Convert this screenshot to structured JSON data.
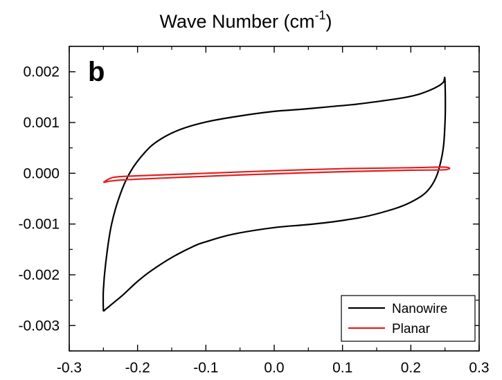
{
  "chart_data": {
    "type": "line",
    "title": "Wave Number (cm",
    "title_superscript": "-1",
    "title_suffix": ")",
    "panel_label": "b",
    "xlabel": "",
    "ylabel": "",
    "xlim": [
      -0.3,
      0.3
    ],
    "ylim": [
      -0.0035,
      0.0025
    ],
    "x_ticks": [
      -0.3,
      -0.2,
      -0.1,
      0.0,
      0.1,
      0.2,
      0.3
    ],
    "x_tick_labels": [
      "-0.3",
      "-0.2",
      "-0.1",
      "0.0",
      "0.1",
      "0.2",
      "0.3"
    ],
    "y_ticks": [
      0.002,
      0.001,
      0.0,
      -0.001,
      -0.002,
      -0.003
    ],
    "y_tick_labels": [
      "0.002",
      "0.001",
      "0.000",
      "-0.001",
      "-0.002",
      "-0.003"
    ],
    "grid": false,
    "legend_position": "bottom-right",
    "series": [
      {
        "name": "Nanowire",
        "color": "#000000",
        "x": [
          -0.25,
          -0.245,
          -0.235,
          -0.22,
          -0.2,
          -0.18,
          -0.15,
          -0.12,
          -0.1,
          -0.06,
          0.0,
          0.05,
          0.1,
          0.15,
          0.2,
          0.23,
          0.245,
          0.25,
          0.25,
          0.248,
          0.243,
          0.235,
          0.225,
          0.21,
          0.19,
          0.16,
          0.12,
          0.08,
          0.04,
          0.0,
          -0.05,
          -0.1,
          -0.14,
          -0.17,
          -0.19,
          -0.21,
          -0.225,
          -0.238,
          -0.246,
          -0.25,
          -0.25
        ],
        "y": [
          -0.00272,
          -0.00266,
          -0.00255,
          -0.00238,
          -0.00213,
          -0.00192,
          -0.00166,
          -0.00145,
          -0.00135,
          -0.0012,
          -0.00107,
          -0.00101,
          -0.00093,
          -0.0008,
          -0.00057,
          -0.00025,
          0.0003,
          0.001,
          0.00183,
          0.0018,
          0.00174,
          0.00168,
          0.00162,
          0.00155,
          0.00149,
          0.00143,
          0.00136,
          0.00131,
          0.00126,
          0.00122,
          0.00113,
          0.00101,
          0.00085,
          0.00064,
          0.0004,
          4e-05,
          -0.0004,
          -0.001,
          -0.0017,
          -0.0023,
          -0.00272
        ]
      },
      {
        "name": "Planar",
        "color": "#e02020",
        "x": [
          -0.25,
          -0.22,
          -0.1,
          0.0,
          0.1,
          0.2,
          0.25,
          0.25,
          0.2,
          0.1,
          0.0,
          -0.1,
          -0.2,
          -0.235,
          -0.25
        ],
        "y": [
          -0.00018,
          -0.00013,
          -6e-05,
          -1e-05,
          3e-05,
          6e-05,
          7e-05,
          0.00012,
          0.00011,
          9e-05,
          5e-05,
          0.0,
          -5e-05,
          -8e-05,
          -0.00018
        ]
      }
    ]
  }
}
